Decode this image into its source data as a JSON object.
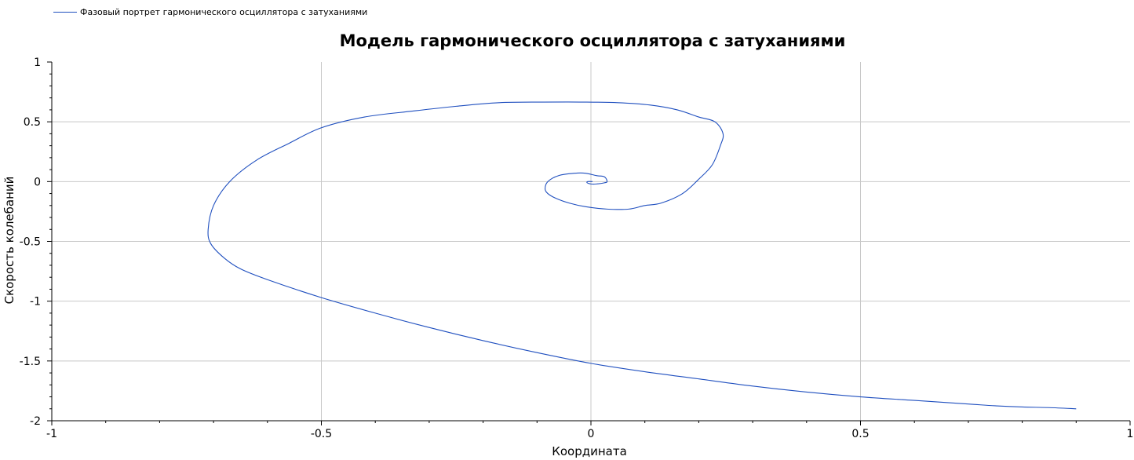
{
  "chart_data": {
    "type": "line",
    "title": "Модель гармонического осциллятора с затуханиями",
    "xlabel": "Координата",
    "ylabel": "Скорость колебаний",
    "xlim": [
      -1,
      1
    ],
    "ylim": [
      -2,
      1
    ],
    "x_ticks": [
      "-1",
      "-0.5",
      "0",
      "0.5",
      "1"
    ],
    "y_ticks": [
      "1",
      "0.5",
      "0",
      "-0.5",
      "-1",
      "-1.5",
      "-2"
    ],
    "grid": true,
    "legend_position": "top-left",
    "series": [
      {
        "name": "Фазовый портрет гармонического осциллятора с затуханиями",
        "color": "#1f4fbf",
        "x": [
          0.9,
          0.85,
          0.8,
          0.75,
          0.7,
          0.6,
          0.5,
          0.4,
          0.3,
          0.2,
          0.1,
          0.0,
          -0.1,
          -0.2,
          -0.3,
          -0.4,
          -0.5,
          -0.6,
          -0.65,
          -0.68,
          -0.705,
          -0.71,
          -0.7,
          -0.67,
          -0.62,
          -0.56,
          -0.5,
          -0.42,
          -0.33,
          -0.25,
          -0.17,
          -0.09,
          -0.02,
          0.05,
          0.11,
          0.16,
          0.2,
          0.23,
          0.245,
          0.24,
          0.225,
          0.2,
          0.17,
          0.13,
          0.1,
          0.07,
          0.03,
          -0.01,
          -0.04,
          -0.065,
          -0.08,
          -0.085,
          -0.08,
          -0.06,
          -0.03,
          -0.01,
          0.01,
          0.025,
          0.03,
          0.025,
          0.01,
          0.0,
          -0.007,
          -0.006,
          0.003
        ],
        "y": [
          -1.9,
          -1.89,
          -1.885,
          -1.875,
          -1.86,
          -1.83,
          -1.8,
          -1.76,
          -1.71,
          -1.65,
          -1.59,
          -1.52,
          -1.43,
          -1.33,
          -1.22,
          -1.1,
          -0.97,
          -0.82,
          -0.73,
          -0.64,
          -0.52,
          -0.4,
          -0.2,
          0.0,
          0.18,
          0.32,
          0.45,
          0.54,
          0.59,
          0.63,
          0.66,
          0.665,
          0.665,
          0.66,
          0.64,
          0.6,
          0.54,
          0.5,
          0.4,
          0.3,
          0.14,
          0.02,
          -0.1,
          -0.18,
          -0.2,
          -0.23,
          -0.23,
          -0.21,
          -0.18,
          -0.14,
          -0.1,
          -0.06,
          0.0,
          0.05,
          0.07,
          0.07,
          0.05,
          0.04,
          0.0,
          -0.01,
          -0.02,
          -0.02,
          -0.01,
          0.0,
          0.0
        ]
      }
    ]
  }
}
